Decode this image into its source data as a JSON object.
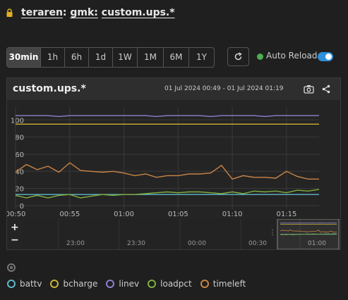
{
  "breadcrumb": {
    "host": "teraren",
    "sep": ":",
    "group": "gmk:",
    "item": "custom.ups.*"
  },
  "time_ranges": [
    {
      "label": "30min",
      "active": true
    },
    {
      "label": "1h",
      "active": false
    },
    {
      "label": "6h",
      "active": false
    },
    {
      "label": "1d",
      "active": false
    },
    {
      "label": "1W",
      "active": false
    },
    {
      "label": "1M",
      "active": false
    },
    {
      "label": "6M",
      "active": false
    },
    {
      "label": "1Y",
      "active": false
    }
  ],
  "auto_reload": {
    "label": "Auto Reload",
    "enabled": true,
    "color": "#4caf50",
    "toggle_color": "#2f8fd8"
  },
  "panel": {
    "title": "custom.ups.*",
    "range": "01 Jul 2024 00:49 - 01 Jul 2024 01:19"
  },
  "navigator_labels": [
    "23:00",
    "23:30",
    "00:00",
    "00:30",
    "01:00"
  ],
  "chart_data": {
    "type": "line",
    "x": [
      "00:50",
      "00:51",
      "00:52",
      "00:53",
      "00:54",
      "00:55",
      "00:56",
      "00:57",
      "00:58",
      "00:59",
      "01:00",
      "01:01",
      "01:02",
      "01:03",
      "01:04",
      "01:05",
      "01:06",
      "01:07",
      "01:08",
      "01:09",
      "01:10",
      "01:11",
      "01:12",
      "01:13",
      "01:14",
      "01:15",
      "01:16",
      "01:17",
      "01:18"
    ],
    "x_ticks": [
      "00:50",
      "00:55",
      "01:00",
      "01:05",
      "01:10",
      "01:15"
    ],
    "y_ticks": [
      0,
      20,
      40,
      60,
      80,
      100
    ],
    "ylim": [
      0,
      115
    ],
    "grid": true,
    "series": [
      {
        "name": "battv",
        "color": "#5fb7c9",
        "values": [
          13,
          13,
          13,
          13,
          13,
          13,
          13,
          13,
          13,
          13,
          13,
          13,
          13,
          13,
          13,
          13,
          13,
          13,
          13,
          13,
          13,
          13,
          13,
          13,
          13,
          13,
          13,
          13,
          13
        ]
      },
      {
        "name": "bcharge",
        "color": "#c9b23a",
        "values": [
          95,
          95,
          95,
          95,
          95,
          95,
          95,
          95,
          95,
          95,
          95,
          95,
          95,
          95,
          95,
          95,
          95,
          95,
          95,
          95,
          95,
          95,
          95,
          95,
          95,
          95,
          95,
          95,
          95
        ]
      },
      {
        "name": "linev",
        "color": "#8f7fd0",
        "values": [
          105,
          105,
          105,
          105,
          104,
          105,
          105,
          105,
          105,
          105,
          105,
          105,
          105,
          104,
          105,
          105,
          105,
          105,
          104,
          105,
          105,
          105,
          105,
          104,
          105,
          105,
          105,
          105,
          105
        ]
      },
      {
        "name": "loadpct",
        "color": "#7fb040",
        "values": [
          12,
          9,
          12,
          9,
          12,
          13,
          9,
          11,
          13,
          12,
          13,
          13,
          14,
          15,
          16,
          15,
          16,
          16,
          15,
          14,
          16,
          14,
          17,
          16,
          17,
          15,
          18,
          17,
          19
        ]
      },
      {
        "name": "timeleft",
        "color": "#c98545",
        "values": [
          39,
          48,
          42,
          46,
          39,
          50,
          41,
          40,
          39,
          40,
          38,
          35,
          37,
          33,
          35,
          35,
          37,
          37,
          38,
          47,
          31,
          35,
          33,
          33,
          32,
          40,
          34,
          31,
          31
        ]
      }
    ]
  }
}
